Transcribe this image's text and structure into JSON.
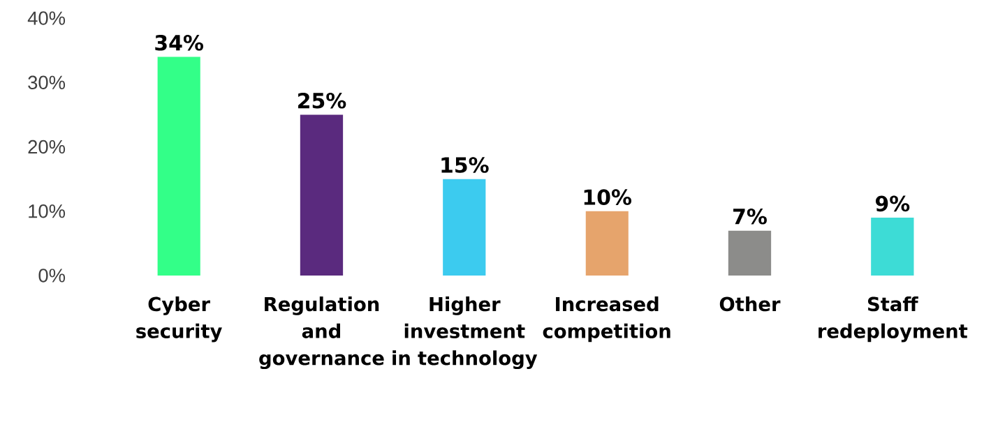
{
  "chart_data": {
    "type": "bar",
    "categories": [
      "Cyber security",
      "Regulation and governance",
      "Higher investment in technology",
      "Increased competition",
      "Other",
      "Staff redeployment"
    ],
    "values": [
      34,
      25,
      15,
      10,
      7,
      9
    ],
    "colors": [
      "#33ff88",
      "#5a2a7e",
      "#3ccbef",
      "#e6a46c",
      "#8c8c8a",
      "#3ddcd6"
    ],
    "value_labels": [
      "34%",
      "25%",
      "15%",
      "10%",
      "7%",
      "9%"
    ],
    "ylim": [
      0,
      40
    ],
    "yticks": [
      {
        "value": 0,
        "label": "0%"
      },
      {
        "value": 10,
        "label": "10%"
      },
      {
        "value": 20,
        "label": "20%"
      },
      {
        "value": 30,
        "label": "30%"
      },
      {
        "value": 40,
        "label": "40%"
      }
    ],
    "grid": false
  }
}
